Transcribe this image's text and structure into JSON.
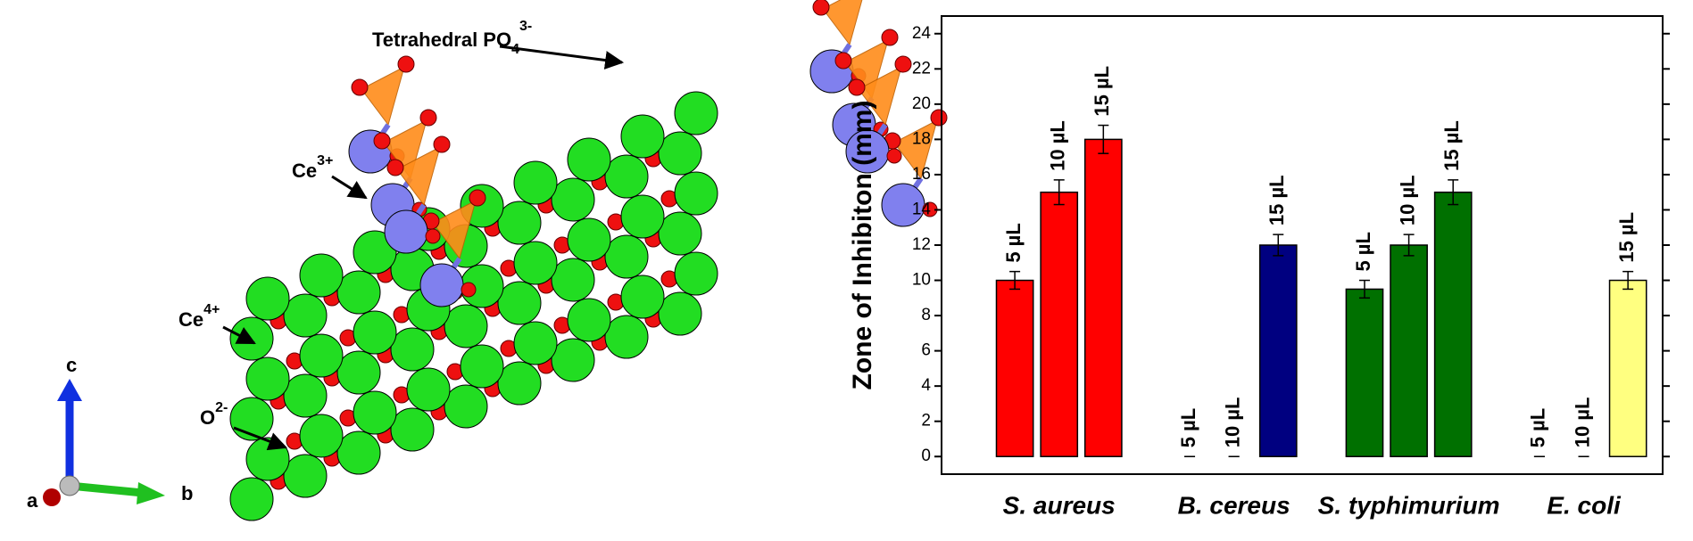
{
  "annotations": [
    {
      "text": "Tetrahedral  PO",
      "sub": "4",
      "sup": "3-"
    },
    {
      "text": "Ce",
      "sup": "3+"
    },
    {
      "text": "Ce",
      "sup": "4+"
    },
    {
      "text": "O",
      "sup": "2-"
    }
  ],
  "axes": {
    "a": "a",
    "b": "b",
    "c": "c"
  },
  "chart_data": {
    "type": "bar",
    "y_label": "Zone of Inhibiton (mm)",
    "categories": [
      "S. aureus",
      "B. cereus",
      "S. typhimurium",
      "E. coli"
    ],
    "category_colors": [
      "#ff0000",
      "#000080",
      "#007000",
      "#ffff80"
    ],
    "series": [
      {
        "name": "5 µL",
        "values": [
          10,
          0,
          9.5,
          0
        ],
        "errors": [
          0.5,
          0,
          0.5,
          0
        ]
      },
      {
        "name": "10 µL",
        "values": [
          15,
          0,
          12,
          0
        ],
        "errors": [
          0.7,
          0,
          0.6,
          0
        ]
      },
      {
        "name": "15 µL",
        "values": [
          18,
          12,
          15,
          10
        ],
        "errors": [
          0.8,
          0.6,
          0.7,
          0.5
        ]
      }
    ],
    "ylim": [
      -1,
      25
    ],
    "yticks": [
      0,
      2,
      4,
      6,
      8,
      10,
      12,
      14,
      16,
      18,
      20,
      22,
      24
    ]
  }
}
